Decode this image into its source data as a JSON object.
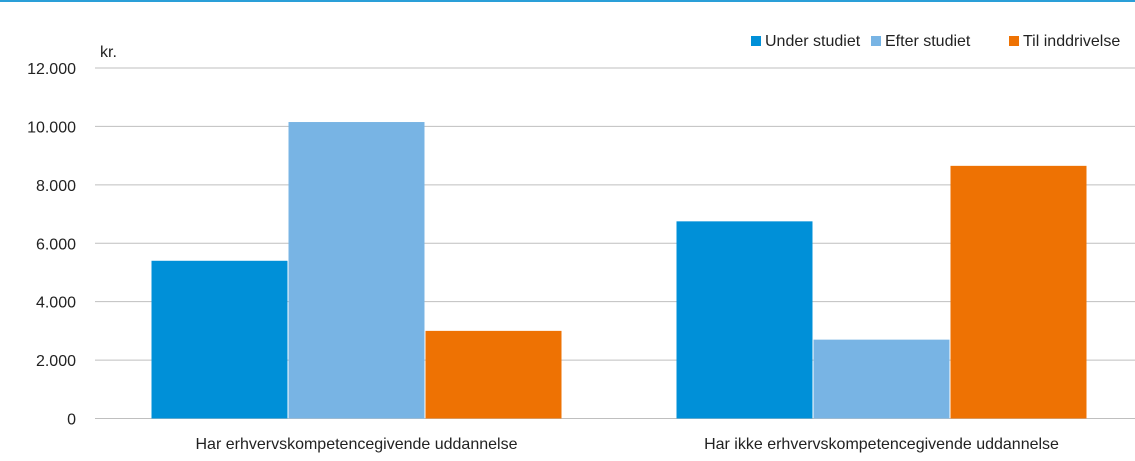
{
  "chart_data": {
    "type": "bar",
    "unit_label": "kr.",
    "categories": [
      "Har erhvervskompetencegivende uddannelse",
      "Har ikke erhvervskompetencegivende uddannelse"
    ],
    "series": [
      {
        "name": "Under studiet",
        "values": [
          5400,
          6750
        ],
        "color": "#0090d8"
      },
      {
        "name": "Efter studiet",
        "values": [
          10150,
          2700
        ],
        "color": "#78b4e4"
      },
      {
        "name": "Til inddrivelse",
        "values": [
          3000,
          8650
        ],
        "color": "#ee7203"
      }
    ],
    "ylim": [
      0,
      12000
    ],
    "yticks": [
      0,
      2000,
      4000,
      6000,
      8000,
      10000,
      12000
    ],
    "ytick_labels": [
      "0",
      "2.000",
      "4.000",
      "6.000",
      "8.000",
      "10.000",
      "12.000"
    ],
    "grid": true,
    "gridline_color": "#bfbfbf",
    "legend_position": "top-right",
    "title": "",
    "xlabel": "",
    "ylabel": ""
  },
  "frame": {
    "top_rule_color": "#2a9fd8"
  }
}
